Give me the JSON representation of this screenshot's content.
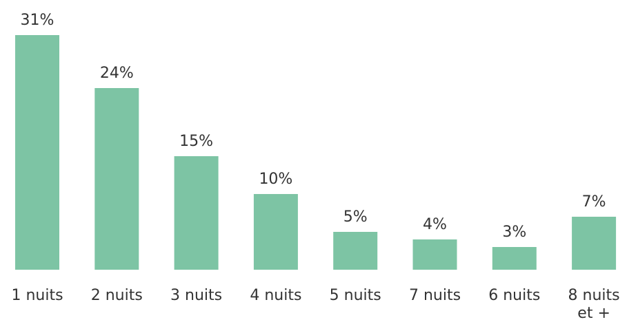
{
  "chart_data": {
    "type": "bar",
    "categories": [
      [
        "1 nuits"
      ],
      [
        "2 nuits"
      ],
      [
        "3 nuits"
      ],
      [
        "4 nuits"
      ],
      [
        "5 nuits"
      ],
      [
        "7 nuits"
      ],
      [
        "6 nuits"
      ],
      [
        "8 nuits",
        "et +"
      ]
    ],
    "values": [
      31,
      24,
      15,
      10,
      5,
      4,
      3,
      7
    ],
    "value_labels": [
      "31%",
      "24%",
      "15%",
      "10%",
      "5%",
      "4%",
      "3%",
      "7%"
    ],
    "title": "",
    "xlabel": "",
    "ylabel": "",
    "unit": "%",
    "ylim": [
      0,
      31
    ],
    "grid": false,
    "legend": "none",
    "bar_color": "#7dc4a4"
  }
}
